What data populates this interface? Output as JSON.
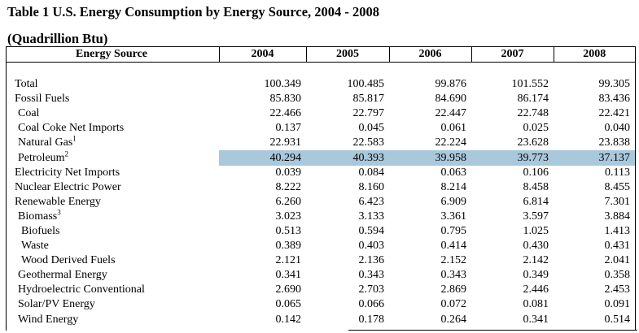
{
  "title": "Table 1 U.S. Energy Consumption by Energy Source, 2004 - 2008",
  "subtitle": "(Quadrillion Btu)",
  "header": {
    "source": "Energy Source",
    "years": [
      "2004",
      "2005",
      "2006",
      "2007",
      "2008"
    ]
  },
  "rows": [
    {
      "label": "Total",
      "indent": 0,
      "values": [
        "100.349",
        "100.485",
        "99.876",
        "101.552",
        "99.305"
      ]
    },
    {
      "label": "Fossil Fuels",
      "indent": 0,
      "values": [
        "85.830",
        "85.817",
        "84.690",
        "86.174",
        "83.436"
      ]
    },
    {
      "label": "Coal",
      "indent": 1,
      "values": [
        "22.466",
        "22.797",
        "22.447",
        "22.748",
        "22.421"
      ]
    },
    {
      "label": "Coal Coke Net Imports",
      "indent": 1,
      "values": [
        "0.137",
        "0.045",
        "0.061",
        "0.025",
        "0.040"
      ]
    },
    {
      "label": "Natural Gas",
      "sup": "1",
      "indent": 1,
      "values": [
        "22.931",
        "22.583",
        "22.224",
        "23.628",
        "23.838"
      ]
    },
    {
      "label": "Petroleum",
      "sup": "2",
      "indent": 1,
      "highlight": true,
      "values": [
        "40.294",
        "40.393",
        "39.958",
        "39.773",
        "37.137"
      ]
    },
    {
      "label": "Electricity Net Imports",
      "indent": 0,
      "values": [
        "0.039",
        "0.084",
        "0.063",
        "0.106",
        "0.113"
      ]
    },
    {
      "label": "Nuclear Electric Power",
      "indent": 0,
      "values": [
        "8.222",
        "8.160",
        "8.214",
        "8.458",
        "8.455"
      ]
    },
    {
      "label": "Renewable Energy",
      "indent": 0,
      "values": [
        "6.260",
        "6.423",
        "6.909",
        "6.814",
        "7.301"
      ]
    },
    {
      "label": "Biomass",
      "sup": "3",
      "indent": 1,
      "values": [
        "3.023",
        "3.133",
        "3.361",
        "3.597",
        "3.884"
      ]
    },
    {
      "label": "Biofuels",
      "indent": 2,
      "values": [
        "0.513",
        "0.594",
        "0.795",
        "1.025",
        "1.413"
      ]
    },
    {
      "label": "Waste",
      "indent": 2,
      "values": [
        "0.389",
        "0.403",
        "0.414",
        "0.430",
        "0.431"
      ]
    },
    {
      "label": "Wood Derived Fuels",
      "indent": 2,
      "values": [
        "2.121",
        "2.136",
        "2.152",
        "2.142",
        "2.041"
      ]
    },
    {
      "label": "Geothermal Energy",
      "indent": 1,
      "values": [
        "0.341",
        "0.343",
        "0.343",
        "0.349",
        "0.358"
      ]
    },
    {
      "label": "Hydroelectric Conventional",
      "indent": 1,
      "values": [
        "2.690",
        "2.703",
        "2.869",
        "2.446",
        "2.453"
      ]
    },
    {
      "label": "Solar/PV Energy",
      "indent": 1,
      "values": [
        "0.065",
        "0.066",
        "0.072",
        "0.081",
        "0.091"
      ]
    },
    {
      "label": "Wind Energy",
      "indent": 1,
      "values": [
        "0.142",
        "0.178",
        "0.264",
        "0.341",
        "0.514"
      ]
    }
  ],
  "colors": {
    "highlight": "#a9c8dc"
  }
}
